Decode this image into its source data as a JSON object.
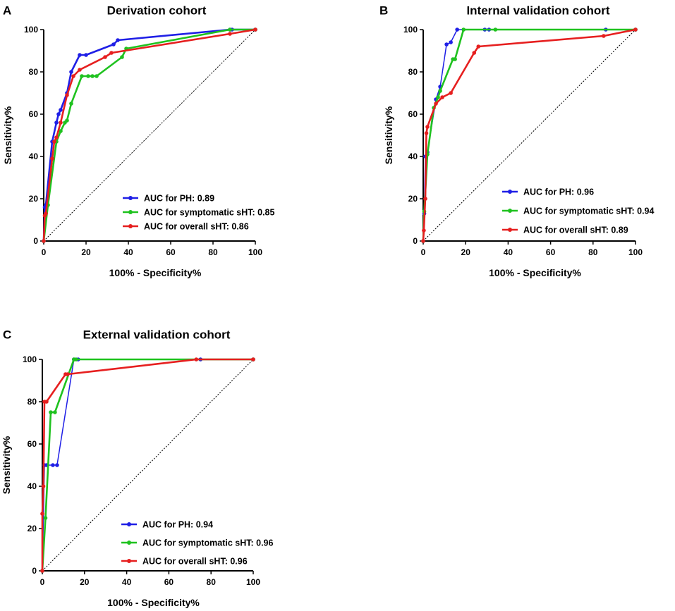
{
  "chart_data": [
    {
      "type": "line",
      "panel_label": "A",
      "title": "Derivation cohort",
      "xlabel": "100% - Specificity%",
      "ylabel": "Sensitivity%",
      "xlim": [
        0,
        100
      ],
      "ylim": [
        0,
        100
      ],
      "xticks": [
        "0",
        "20",
        "40",
        "60",
        "80",
        "100"
      ],
      "yticks": [
        "0",
        "20",
        "40",
        "60",
        "80",
        "100"
      ],
      "reference_line": "diagonal",
      "legend_position": "bottom-right",
      "series": [
        {
          "name": "AUC for PH: 0.89",
          "color": "#1f1fe6",
          "x": [
            0,
            0.5,
            1,
            4,
            6,
            7,
            8,
            11,
            13,
            17,
            20,
            33,
            35,
            88,
            89,
            100
          ],
          "y": [
            0,
            16,
            17,
            47,
            56,
            60,
            62,
            70,
            80,
            88,
            88,
            93,
            95,
            100,
            100,
            100
          ]
        },
        {
          "name": "AUC for symptomatic sHT: 0.85",
          "color": "#1fc21f",
          "x": [
            0,
            2,
            6,
            8,
            10,
            11,
            13,
            18,
            21,
            23,
            25,
            37,
            39,
            88,
            100
          ],
          "y": [
            0,
            17,
            47,
            52,
            56,
            57,
            65,
            78,
            78,
            78,
            78,
            87,
            91,
            100,
            100
          ]
        },
        {
          "name": "AUC for overall sHT: 0.86",
          "color": "#e61f1f",
          "x": [
            0,
            0.5,
            1,
            4,
            5,
            6,
            8,
            11,
            14,
            17,
            29,
            32,
            88,
            100
          ],
          "y": [
            0,
            12,
            13,
            39,
            47,
            49,
            56,
            69,
            78,
            81,
            87,
            89,
            98,
            100
          ]
        }
      ]
    },
    {
      "type": "line",
      "panel_label": "B",
      "title": "Internal validation cohort",
      "xlabel": "100% - Specificity%",
      "ylabel": "Sensitivity%",
      "xlim": [
        0,
        100
      ],
      "ylim": [
        0,
        100
      ],
      "xticks": [
        "0",
        "20",
        "40",
        "60",
        "80",
        "100"
      ],
      "yticks": [
        "0",
        "20",
        "40",
        "60",
        "80",
        "100"
      ],
      "reference_line": "diagonal",
      "legend_position": "bottom-right",
      "series": [
        {
          "name": "AUC for PH: 0.96",
          "color": "#1f1fe6",
          "x": [
            0,
            0.5,
            1,
            2,
            6,
            8,
            11,
            13,
            16,
            29,
            31,
            86,
            100
          ],
          "y": [
            0,
            13,
            40,
            42,
            67,
            73,
            93,
            94,
            100,
            100,
            100,
            100,
            100
          ]
        },
        {
          "name": "AUC for symptomatic sHT: 0.94",
          "color": "#1fc21f",
          "x": [
            0,
            0.5,
            2,
            5,
            7,
            8,
            14,
            15,
            19,
            34,
            100
          ],
          "y": [
            0,
            14,
            41,
            63,
            68,
            71,
            86,
            86,
            100,
            100,
            100
          ]
        },
        {
          "name": "AUC for overall sHT: 0.89",
          "color": "#e61f1f",
          "x": [
            0,
            0.3,
            1,
            1.5,
            2,
            6,
            9,
            13,
            24,
            26,
            85,
            100
          ],
          "y": [
            0,
            5,
            20,
            51,
            54,
            65,
            68,
            70,
            89,
            92,
            97,
            100
          ]
        }
      ]
    },
    {
      "type": "line",
      "panel_label": "C",
      "title": "External validation cohort",
      "xlabel": "100% - Specificity%",
      "ylabel": "Sensitivity%",
      "xlim": [
        0,
        100
      ],
      "ylim": [
        0,
        100
      ],
      "xticks": [
        "0",
        "20",
        "40",
        "60",
        "80",
        "100"
      ],
      "yticks": [
        "0",
        "20",
        "40",
        "60",
        "80",
        "100"
      ],
      "reference_line": "diagonal",
      "legend_position": "bottom-right",
      "series": [
        {
          "name": "AUC for PH: 0.94",
          "color": "#1f1fe6",
          "x": [
            0,
            1,
            2,
            5,
            7,
            15,
            17,
            75,
            100
          ],
          "y": [
            0,
            50,
            50,
            50,
            50,
            100,
            100,
            100,
            100
          ]
        },
        {
          "name": "AUC for symptomatic sHT: 0.96",
          "color": "#1fc21f",
          "x": [
            0,
            1.5,
            4,
            6,
            15,
            16,
            100
          ],
          "y": [
            0,
            25,
            75,
            75,
            100,
            100,
            100
          ]
        },
        {
          "name": "AUC for overall sHT: 0.96",
          "color": "#e61f1f",
          "x": [
            0,
            0,
            0.5,
            1,
            2,
            11,
            12,
            73,
            100
          ],
          "y": [
            0,
            27,
            40,
            80,
            80,
            93,
            93,
            100,
            100
          ]
        }
      ]
    }
  ]
}
